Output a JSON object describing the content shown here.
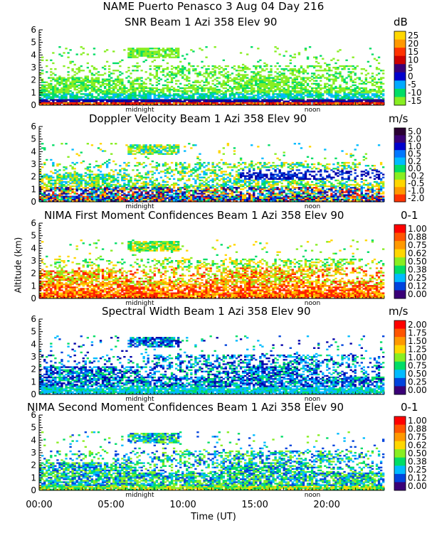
{
  "header": {
    "title": "NAME Puerto Penasco    3 Aug 04 Day 216"
  },
  "x_axis": {
    "label": "Time (UT)",
    "ticks": [
      "00:00",
      "05:00",
      "10:00",
      "15:00",
      "20:00"
    ],
    "tick_hours": [
      0,
      5,
      10,
      15,
      20
    ]
  },
  "y_axis": {
    "label": "Altitude (km)"
  },
  "chart_data": [
    {
      "type": "heatmap",
      "title": "SNR Beam 1 Azi 358 Elev 90",
      "unit": "dB",
      "xlim": [
        0,
        24
      ],
      "ylim": [
        0,
        6
      ],
      "yticks": [
        "0",
        "1",
        "2",
        "3",
        "4",
        "5",
        "6"
      ],
      "markers": [
        {
          "label": "midnight",
          "hour": 7.0
        },
        {
          "label": "noon",
          "hour": 19.0
        }
      ],
      "colorbar": {
        "labels": [
          "25",
          "20",
          "15",
          "10",
          "5",
          "0",
          "-5",
          "-10",
          "-15"
        ],
        "colors": [
          "#ffd700",
          "#ff9900",
          "#ff3300",
          "#cc0000",
          "#3a0077",
          "#0000cc",
          "#00aaff",
          "#00dd66",
          "#88ee22"
        ]
      }
    },
    {
      "type": "heatmap",
      "title": "Doppler Velocity Beam 1 Azi 358 Elev 90",
      "unit": "m/s",
      "xlim": [
        0,
        24
      ],
      "ylim": [
        0,
        6
      ],
      "yticks": [
        "0",
        "1",
        "2",
        "3",
        "4",
        "5",
        "6"
      ],
      "markers": [
        {
          "label": "midnight",
          "hour": 7.0
        },
        {
          "label": "noon",
          "hour": 19.0
        }
      ],
      "colorbar": {
        "labels": [
          "5.0",
          "2.0",
          "1.0",
          "0.5",
          "0.2",
          "0.0",
          "-0.2",
          "-0.5",
          "-1.0",
          "-2.0"
        ],
        "colors": [
          "#2a0033",
          "#3a0077",
          "#0000cc",
          "#0077ff",
          "#00bbff",
          "#00dd66",
          "#88ee22",
          "#ffd700",
          "#ff9900",
          "#ff3300"
        ]
      }
    },
    {
      "type": "heatmap",
      "title": "NIMA First Moment Confidences Beam 1 Azi 358 Elev 90",
      "unit": "0-1",
      "xlim": [
        0,
        24
      ],
      "ylim": [
        0,
        6
      ],
      "yticks": [
        "0",
        "1",
        "2",
        "3",
        "4",
        "5",
        "6"
      ],
      "markers": [
        {
          "label": "midnight",
          "hour": 7.0
        },
        {
          "label": "noon",
          "hour": 19.0
        }
      ],
      "colorbar": {
        "labels": [
          "1.00",
          "0.88",
          "0.75",
          "0.62",
          "0.50",
          "0.38",
          "0.25",
          "0.12",
          "0.00"
        ],
        "colors": [
          "#ff0000",
          "#ff5500",
          "#ff9900",
          "#ffd700",
          "#88ee22",
          "#00dd66",
          "#00bbff",
          "#0044dd",
          "#3a0077"
        ]
      }
    },
    {
      "type": "heatmap",
      "title": "Spectral Width Beam 1 Azi 358 Elev 90",
      "unit": "m/s",
      "xlim": [
        0,
        24
      ],
      "ylim": [
        0,
        6
      ],
      "yticks": [
        "0",
        "1",
        "2",
        "3",
        "4",
        "5",
        "6"
      ],
      "markers": [
        {
          "label": "midnight",
          "hour": 7.0
        },
        {
          "label": "noon",
          "hour": 19.0
        }
      ],
      "colorbar": {
        "labels": [
          "2.00",
          "1.75",
          "1.50",
          "1.25",
          "1.00",
          "0.75",
          "0.50",
          "0.25",
          "0.00"
        ],
        "colors": [
          "#ff0000",
          "#ff5500",
          "#ff9900",
          "#ffd700",
          "#88ee22",
          "#00dd66",
          "#00bbff",
          "#0044dd",
          "#3a0077"
        ]
      }
    },
    {
      "type": "heatmap",
      "title": "NIMA Second Moment Confidences Beam 1 Azi 358 Elev 90",
      "unit": "0-1",
      "xlim": [
        0,
        24
      ],
      "ylim": [
        0,
        6
      ],
      "yticks": [
        "0",
        "1",
        "2",
        "3",
        "4",
        "5",
        "6"
      ],
      "markers": [
        {
          "label": "midnight",
          "hour": 7.0
        },
        {
          "label": "noon",
          "hour": 19.0
        }
      ],
      "colorbar": {
        "labels": [
          "1.00",
          "0.88",
          "0.75",
          "0.62",
          "0.50",
          "0.38",
          "0.25",
          "0.12",
          "0.00"
        ],
        "colors": [
          "#ff0000",
          "#ff5500",
          "#ff9900",
          "#ffd700",
          "#88ee22",
          "#00dd66",
          "#00bbff",
          "#0044dd",
          "#3a0077"
        ]
      }
    }
  ]
}
